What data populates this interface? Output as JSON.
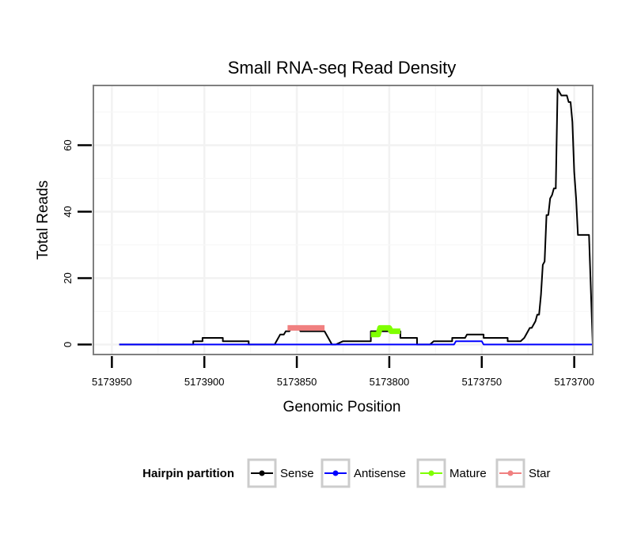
{
  "chart_data": {
    "type": "line",
    "title": "Small RNA-seq Read Density",
    "xlabel": "Genomic Position",
    "ylabel": "Total Reads",
    "xlim": [
      5173960,
      5173690
    ],
    "ylim": [
      -3,
      78
    ],
    "x_reversed": true,
    "x_ticks": [
      5173950,
      5173900,
      5173850,
      5173800,
      5173750,
      5173700
    ],
    "x_tick_labels": [
      "5173950",
      "5173900",
      "5173850",
      "5173800",
      "5173750",
      "5173700"
    ],
    "y_ticks": [
      0,
      20,
      40,
      60
    ],
    "y_tick_labels": [
      "0",
      "20",
      "40",
      "60"
    ],
    "grid": true,
    "legend": {
      "title": "Hairpin partition",
      "position": "bottom",
      "entries": [
        "Sense",
        "Antisense",
        "Mature",
        "Star"
      ]
    },
    "series": [
      {
        "name": "Sense",
        "color": "#000000",
        "x": [
          5173946,
          5173906,
          5173906,
          5173901,
          5173901,
          5173890,
          5173890,
          5173876,
          5173876,
          5173862,
          5173860,
          5173859,
          5173857,
          5173856,
          5173854,
          5173853,
          5173849,
          5173848,
          5173835,
          5173833,
          5173831,
          5173829,
          5173825,
          5173824,
          5173810,
          5173810,
          5173794,
          5173794,
          5173785,
          5173785,
          5173778,
          5173776,
          5173766,
          5173766,
          5173759,
          5173758,
          5173749,
          5173749,
          5173736,
          5173736,
          5173729,
          5173727,
          5173724,
          5173723,
          5173721,
          5173720,
          5173719,
          5173718,
          5173717,
          5173716,
          5173715,
          5173714,
          5173713,
          5173712,
          5173711,
          5173710,
          5173709,
          5173708,
          5173707,
          5173706,
          5173705,
          5173704,
          5173703,
          5173702,
          5173701,
          5173700,
          5173699,
          5173698,
          5173696,
          5173695,
          5173693,
          5173692,
          5173690
        ],
        "y": [
          0,
          0,
          1,
          1,
          2,
          2,
          1,
          1,
          0,
          0,
          2,
          3,
          3,
          4,
          4,
          5,
          5,
          4,
          4,
          2,
          0,
          0,
          1,
          1,
          1,
          4,
          4,
          2,
          2,
          0,
          0,
          1,
          1,
          2,
          2,
          3,
          3,
          2,
          2,
          1,
          1,
          2,
          5,
          5,
          7,
          9,
          9,
          15,
          24,
          25,
          39,
          39,
          44,
          45,
          47,
          47,
          77,
          76,
          75,
          75,
          75,
          75,
          73,
          73,
          67,
          52,
          44,
          33,
          33,
          33,
          33,
          33,
          0
        ]
      },
      {
        "name": "Antisense",
        "color": "#0000ff",
        "x": [
          5173946,
          5173765,
          5173764,
          5173750,
          5173749,
          5173690
        ],
        "y": [
          0,
          0,
          1,
          1,
          0,
          0
        ]
      },
      {
        "name": "Mature",
        "color": "#7fff00",
        "x": [
          5173810,
          5173806,
          5173805,
          5173800,
          5173799,
          5173794
        ],
        "y": [
          3,
          3,
          5,
          5,
          4,
          4
        ]
      },
      {
        "name": "Star",
        "color": "#f08080",
        "x": [
          5173855,
          5173835
        ],
        "y": [
          5,
          5
        ]
      }
    ]
  }
}
